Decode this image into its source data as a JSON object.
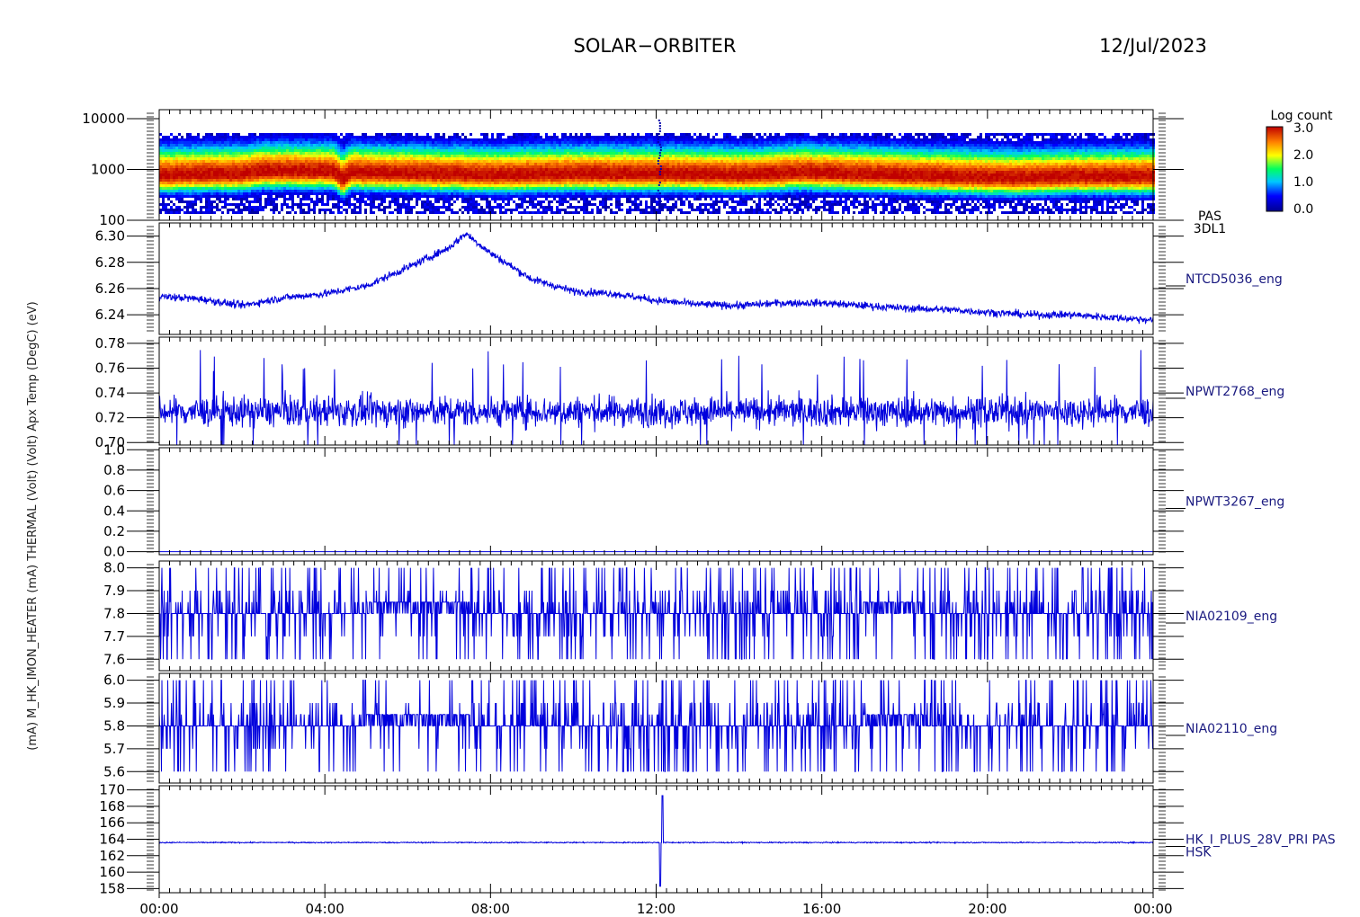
{
  "header": {
    "mission": "SOLAR−ORBITER",
    "date": "12/Jul/2023"
  },
  "colors": {
    "trace": "#0000dd",
    "axis": "#000000",
    "label": "#1a1a80"
  },
  "x_axis": {
    "ticks": [
      "00:00",
      "04:00",
      "08:00",
      "12:00",
      "16:00",
      "20:00",
      "00:00"
    ],
    "range_hours": [
      0,
      24
    ]
  },
  "y_axis_label": "(mA)  M_HK_IMON_HEATER  (mA)  THERMAL  (Volt)  (Volt)  Apx Temp (DegC)  (eV)",
  "chart_data": [
    {
      "type": "heatmap",
      "ylabel": "(eV)",
      "yscale": "log",
      "ylim": [
        100,
        15000
      ],
      "yticks": [
        "10000",
        "1000",
        "100"
      ],
      "ytick_values": [
        10000,
        1000,
        100
      ],
      "right_label": [
        "PAS",
        "3DL1"
      ],
      "colorbar": {
        "title": "Log count",
        "ticks": [
          "3.0",
          "2.0",
          "1.0",
          "0.0"
        ],
        "range": [
          0,
          3
        ]
      },
      "band": [
        {
          "t": 0,
          "e": 800
        },
        {
          "t": 2,
          "e": 850
        },
        {
          "t": 2.5,
          "e": 950
        },
        {
          "t": 4.2,
          "e": 950
        },
        {
          "t": 4.4,
          "e": 650
        },
        {
          "t": 4.6,
          "e": 900
        },
        {
          "t": 6,
          "e": 850
        },
        {
          "t": 8,
          "e": 800
        },
        {
          "t": 10,
          "e": 850
        },
        {
          "t": 12,
          "e": 850
        },
        {
          "t": 14,
          "e": 800
        },
        {
          "t": 15.5,
          "e": 900
        },
        {
          "t": 16.5,
          "e": 850
        },
        {
          "t": 19,
          "e": 750
        },
        {
          "t": 20.5,
          "e": 700
        },
        {
          "t": 22,
          "e": 750
        },
        {
          "t": 24,
          "e": 750
        }
      ]
    },
    {
      "type": "line",
      "series": [
        {
          "name": "NTCD5036_eng"
        }
      ],
      "ylim": [
        6.225,
        6.31
      ],
      "yticks": [
        "6.30",
        "6.28",
        "6.26",
        "6.24"
      ],
      "ytick_values": [
        6.3,
        6.28,
        6.26,
        6.24
      ],
      "x": [
        0,
        1,
        2,
        3,
        4,
        5,
        6,
        7,
        7.4,
        8,
        9,
        10,
        11,
        12,
        13,
        14,
        15,
        16,
        17,
        18,
        19,
        20,
        21,
        22,
        23,
        24
      ],
      "y": [
        6.254,
        6.252,
        6.247,
        6.253,
        6.256,
        6.262,
        6.276,
        6.291,
        6.302,
        6.287,
        6.267,
        6.258,
        6.256,
        6.251,
        6.248,
        6.247,
        6.249,
        6.249,
        6.247,
        6.245,
        6.244,
        6.242,
        6.24,
        6.24,
        6.238,
        6.236
      ],
      "noise": 0.0025
    },
    {
      "type": "line",
      "series": [
        {
          "name": "NPWT2768_eng"
        }
      ],
      "ylim": [
        0.698,
        0.785
      ],
      "yticks": [
        "0.78",
        "0.76",
        "0.74",
        "0.72",
        "0.70"
      ],
      "ytick_values": [
        0.78,
        0.76,
        0.74,
        0.72,
        0.7
      ],
      "baseline": 0.725,
      "noise": 0.013
    },
    {
      "type": "line",
      "series": [
        {
          "name": "NPWT3267_eng"
        }
      ],
      "ylim": [
        -0.03,
        1.02
      ],
      "yticks": [
        "1.0",
        "0.8",
        "0.6",
        "0.4",
        "0.2",
        "0.0"
      ],
      "ytick_values": [
        1.0,
        0.8,
        0.6,
        0.4,
        0.2,
        0.0
      ],
      "baseline": 0.0,
      "noise": 0
    },
    {
      "type": "line",
      "series": [
        {
          "name": "NIA02109_eng"
        }
      ],
      "ylim": [
        7.55,
        8.03
      ],
      "yticks": [
        "8.0",
        "7.9",
        "7.8",
        "7.7",
        "7.6"
      ],
      "ytick_values": [
        8.0,
        7.9,
        7.8,
        7.7,
        7.6
      ],
      "baseline": 7.8,
      "levels": [
        7.6,
        7.7,
        7.8,
        7.85,
        7.9,
        8.0
      ],
      "noise": 0.06
    },
    {
      "type": "line",
      "series": [
        {
          "name": "NIA02110_eng"
        }
      ],
      "ylim": [
        5.55,
        6.03
      ],
      "yticks": [
        "6.0",
        "5.9",
        "5.8",
        "5.7",
        "5.6"
      ],
      "ytick_values": [
        6.0,
        5.9,
        5.8,
        5.7,
        5.6
      ],
      "baseline": 5.8,
      "levels": [
        5.6,
        5.7,
        5.8,
        5.85,
        5.9,
        6.0
      ],
      "noise": 0.06
    },
    {
      "type": "line",
      "series": [
        {
          "name": "HK_I_PLUS_28V_PRI PAS"
        }
      ],
      "right_label_2": "HSK",
      "ylim": [
        157.5,
        170.5
      ],
      "yticks": [
        "170",
        "168",
        "166",
        "164",
        "162",
        "160",
        "158"
      ],
      "ytick_values": [
        170,
        168,
        166,
        164,
        162,
        160,
        158
      ],
      "baseline": 163.6,
      "spike": {
        "t": 12.1,
        "min": 158.3,
        "max": 169.3
      },
      "noise": 0.12
    }
  ]
}
